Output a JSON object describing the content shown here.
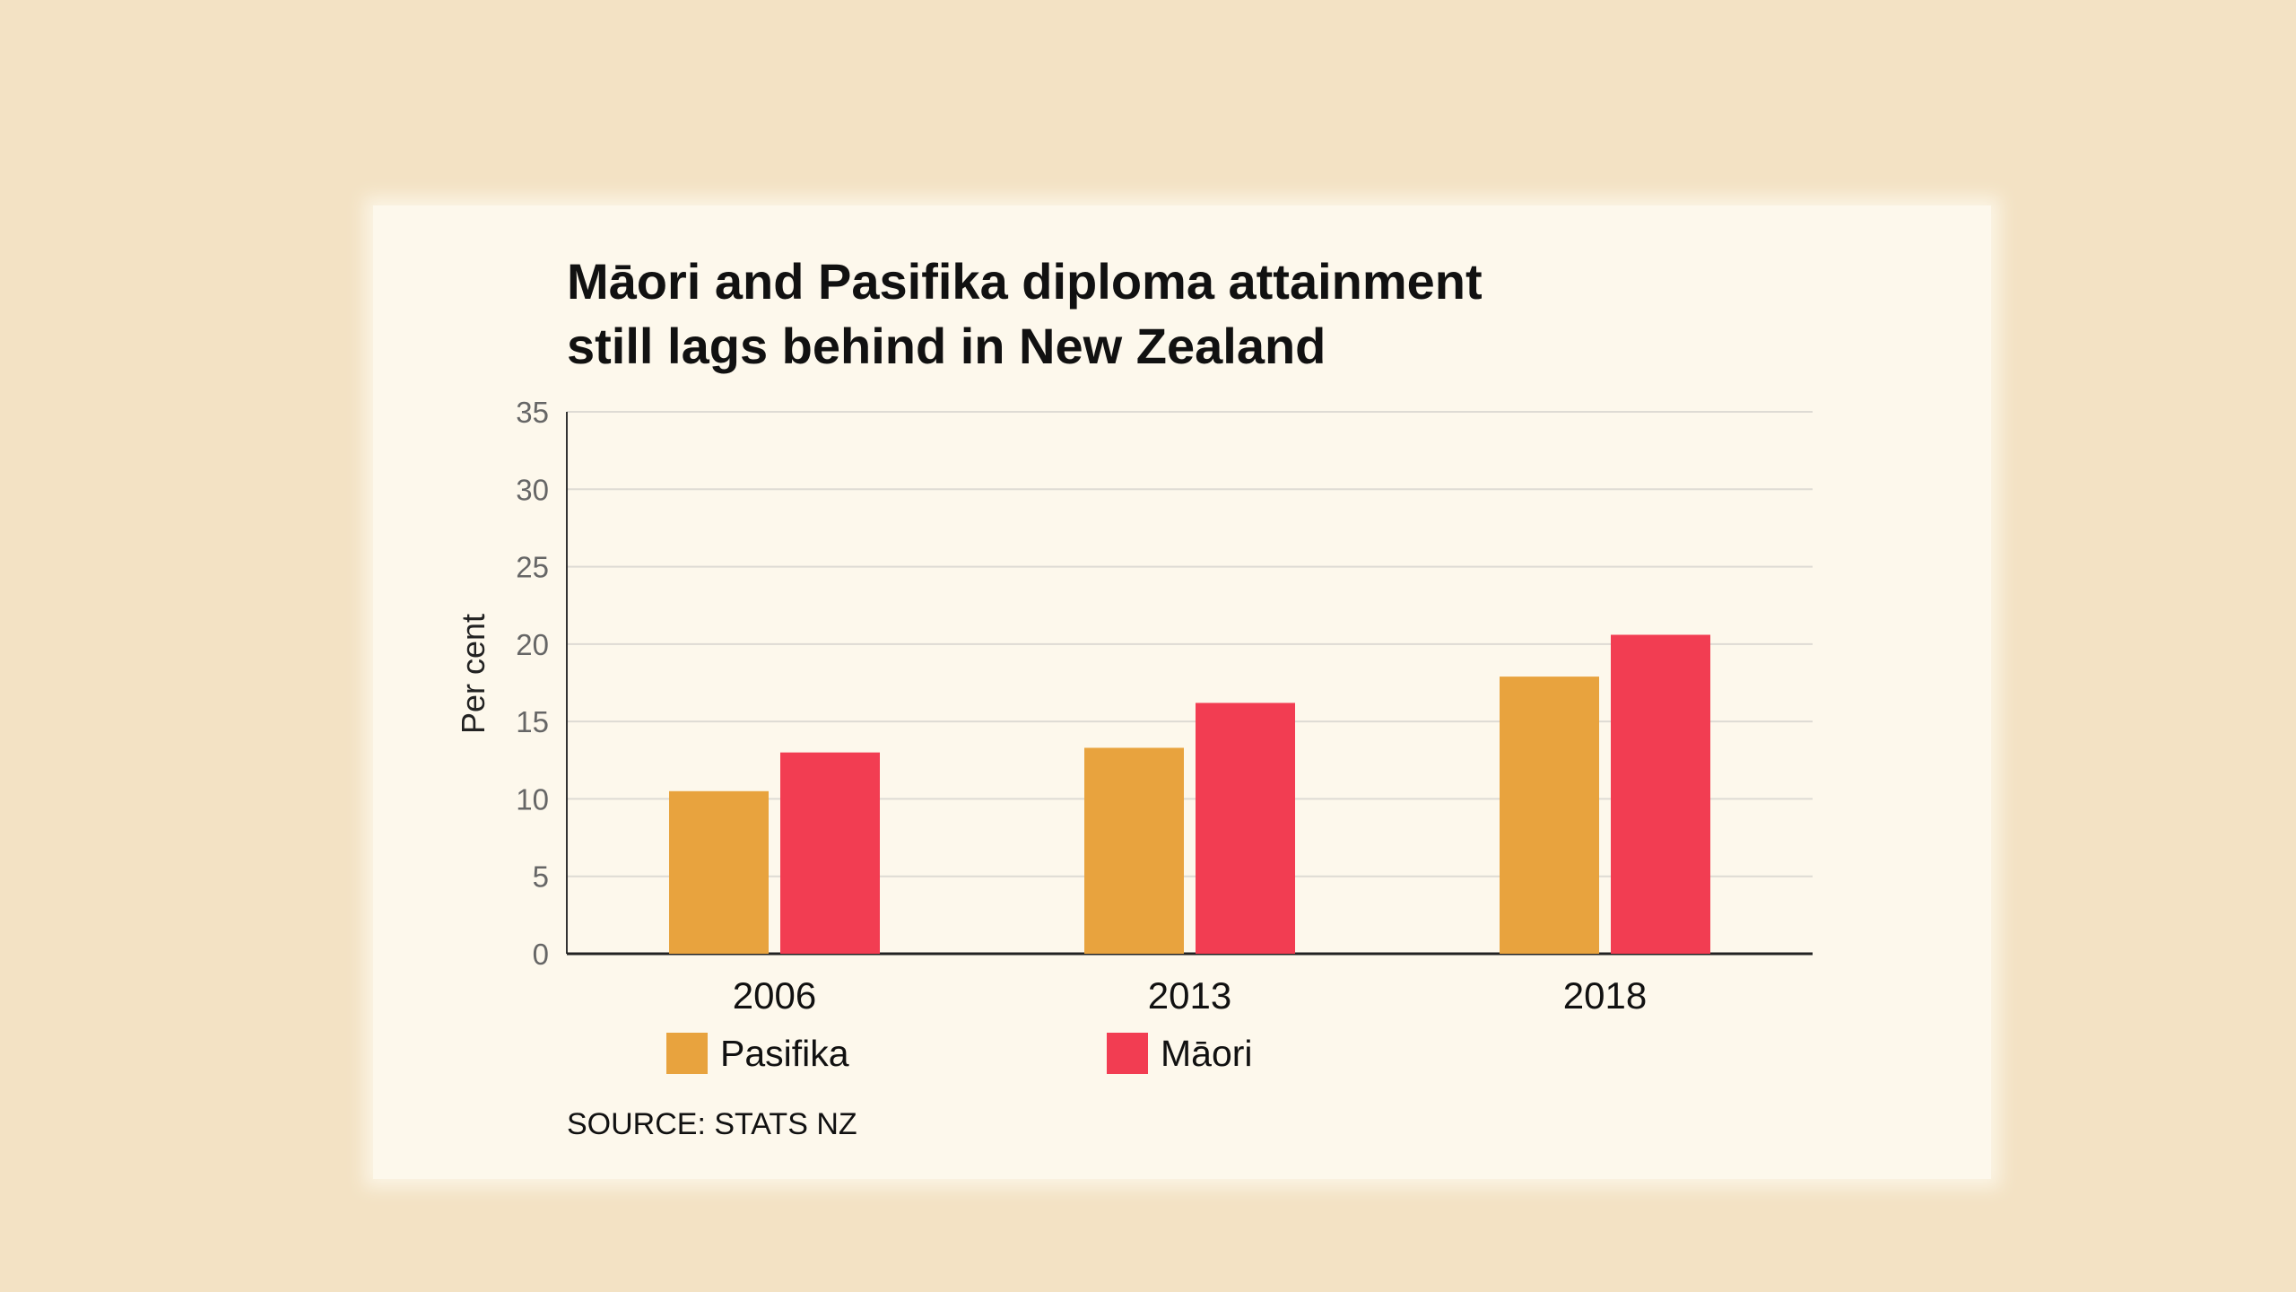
{
  "chart_data": {
    "type": "bar",
    "title": "Māori and Pasifika diploma attainment still lags behind in New Zealand",
    "title_lines": [
      "Māori and Pasifika diploma attainment",
      "still lags behind in New Zealand"
    ],
    "categories": [
      "2006",
      "2013",
      "2018"
    ],
    "series": [
      {
        "name": "Pasifika",
        "color": "#e8a33e",
        "values": [
          10.5,
          13.3,
          17.9
        ]
      },
      {
        "name": "Māori",
        "color": "#f23d52",
        "values": [
          13.0,
          16.2,
          20.6
        ]
      }
    ],
    "xlabel": "",
    "ylabel": "Per cent",
    "ylim": [
      0,
      35
    ],
    "yticks": [
      "0",
      "5",
      "10",
      "15",
      "20",
      "25",
      "30",
      "35"
    ],
    "grid": true,
    "legend": "bottom",
    "source": "SOURCE: STATS NZ"
  }
}
